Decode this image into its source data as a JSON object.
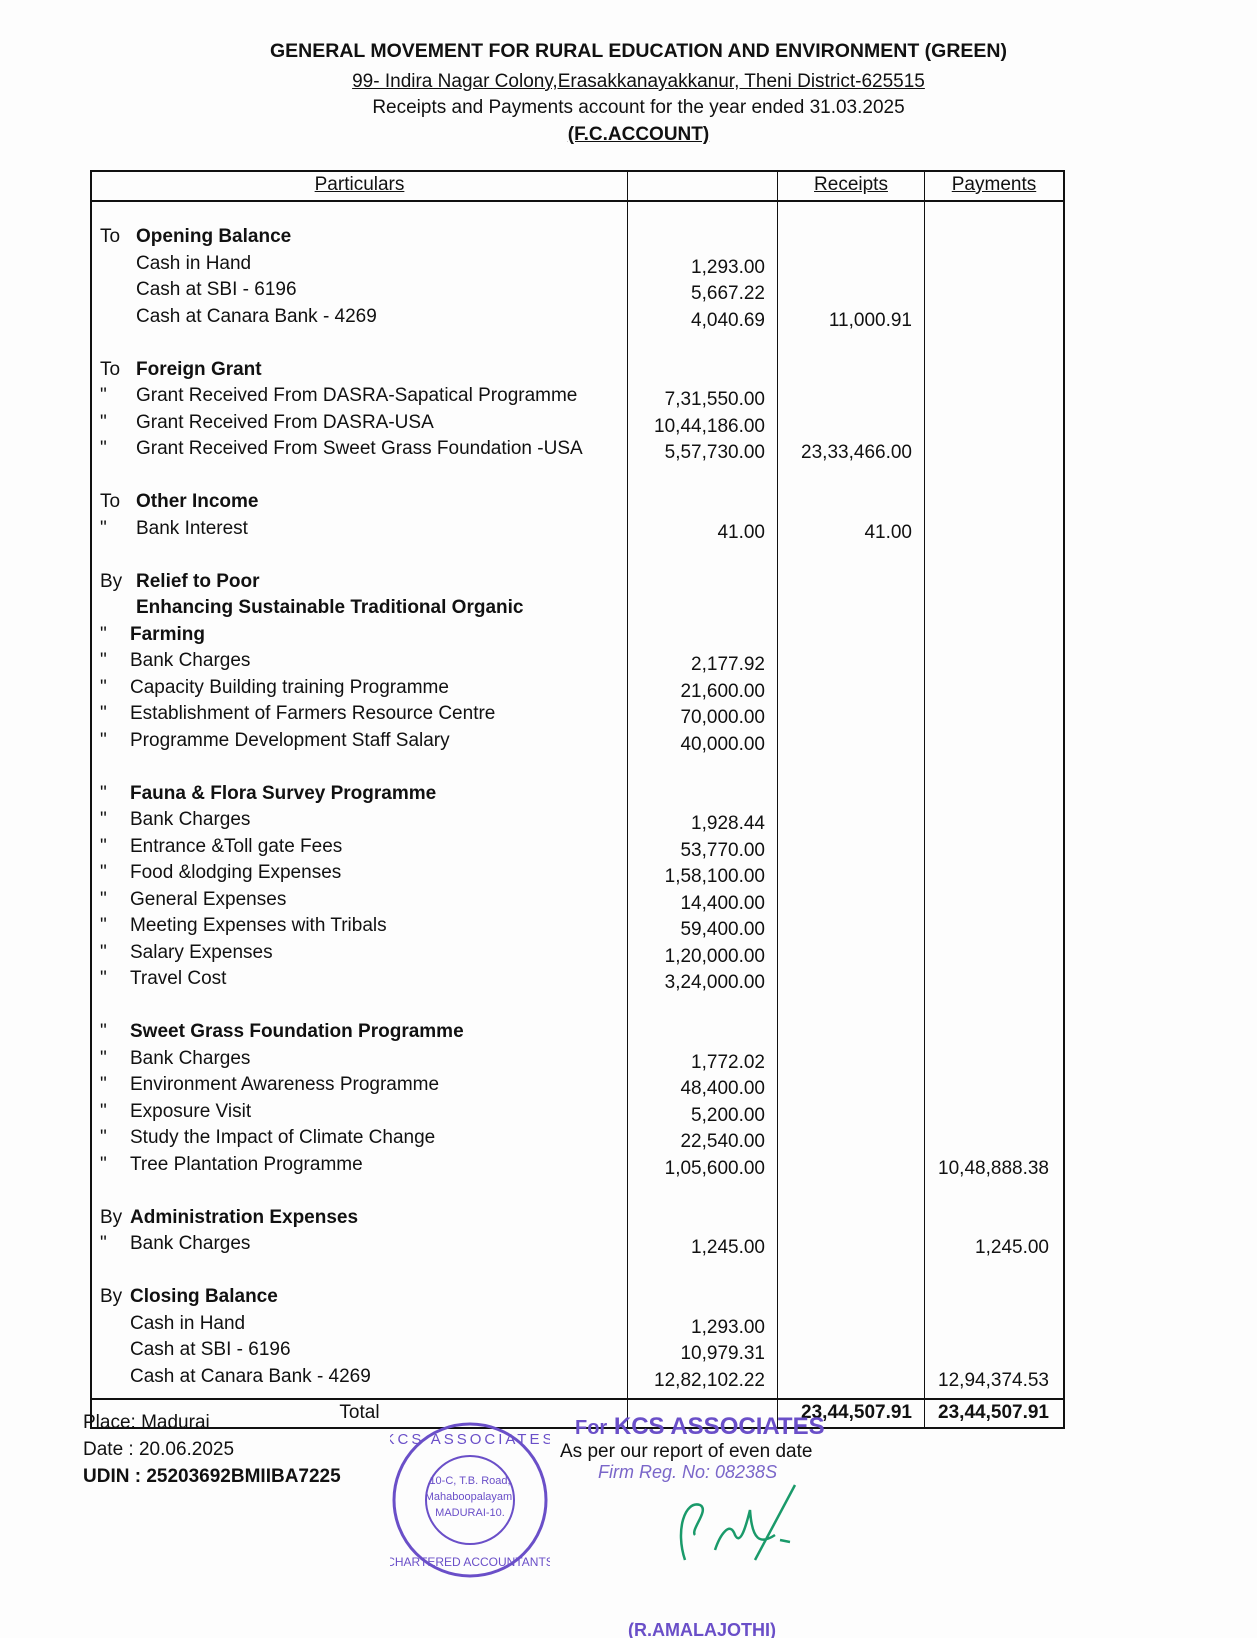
{
  "header": {
    "org": "GENERAL MOVEMENT FOR RURAL EDUCATION AND ENVIRONMENT (GREEN)",
    "address": "99- Indira Nagar Colony,Erasakkanayakkanur, Theni District-625515",
    "statement": "Receipts and Payments account for the year ended 31.03.2025",
    "account": "(F.C.ACCOUNT)"
  },
  "columns": {
    "particulars": "Particulars",
    "amount": "",
    "receipts": "Receipts",
    "payments": "Payments"
  },
  "rows": [
    {
      "pre": "To",
      "label": "Opening Balance",
      "bold": true,
      "indent": 1
    },
    {
      "label": "Cash in Hand",
      "indent": 1,
      "amount": "1,293.00"
    },
    {
      "label": "Cash at SBI - 6196",
      "indent": 1,
      "amount": "5,667.22"
    },
    {
      "label": "Cash at Canara Bank - 4269",
      "indent": 1,
      "amount": "4,040.69",
      "receipts": "11,000.91"
    },
    {
      "blank": true
    },
    {
      "pre": "To",
      "label": "Foreign Grant",
      "bold": true,
      "indent": 1
    },
    {
      "pre": "\"",
      "label": "Grant Received From DASRA-Sapatical Programme",
      "indent": 1,
      "amount": "7,31,550.00"
    },
    {
      "pre": "\"",
      "label": "Grant Received From DASRA-USA",
      "indent": 1,
      "amount": "10,44,186.00"
    },
    {
      "pre": "\"",
      "label": "Grant Received From Sweet Grass Foundation -USA",
      "indent": 1,
      "amount": "5,57,730.00",
      "receipts": "23,33,466.00"
    },
    {
      "blank": true
    },
    {
      "pre": "To",
      "label": "Other Income",
      "bold": true,
      "indent": 1
    },
    {
      "pre": "\"",
      "label": "Bank Interest",
      "indent": 1,
      "amount": "41.00",
      "receipts": "41.00"
    },
    {
      "blank": true
    },
    {
      "pre": "By",
      "label": "Relief to Poor",
      "bold": true,
      "indent": 1
    },
    {
      "label": "Enhancing Sustainable Traditional Organic",
      "bold": true,
      "indent": 1
    },
    {
      "pre": "\"",
      "label": "Farming",
      "bold": true,
      "indent": 2
    },
    {
      "pre": "\"",
      "label": "Bank Charges",
      "indent": 2,
      "amount": "2,177.92"
    },
    {
      "pre": "\"",
      "label": "Capacity Building training Programme",
      "indent": 2,
      "amount": "21,600.00"
    },
    {
      "pre": "\"",
      "label": "Establishment of Farmers Resource Centre",
      "indent": 2,
      "amount": "70,000.00"
    },
    {
      "pre": "\"",
      "label": "Programme Development Staff Salary",
      "indent": 2,
      "amount": "40,000.00"
    },
    {
      "blank": true
    },
    {
      "pre": "\"",
      "label": "Fauna & Flora Survey Programme",
      "bold": true,
      "indent": 2
    },
    {
      "pre": "\"",
      "label": "Bank Charges",
      "indent": 2,
      "amount": "1,928.44"
    },
    {
      "pre": "\"",
      "label": "Entrance &Toll gate Fees",
      "indent": 2,
      "amount": "53,770.00"
    },
    {
      "pre": "\"",
      "label": "Food &lodging Expenses",
      "indent": 2,
      "amount": "1,58,100.00"
    },
    {
      "pre": "\"",
      "label": "General Expenses",
      "indent": 2,
      "amount": "14,400.00"
    },
    {
      "pre": "\"",
      "label": "Meeting Expenses with Tribals",
      "indent": 2,
      "amount": "59,400.00"
    },
    {
      "pre": "\"",
      "label": "Salary Expenses",
      "indent": 2,
      "amount": "1,20,000.00"
    },
    {
      "pre": "\"",
      "label": "Travel Cost",
      "indent": 2,
      "amount": "3,24,000.00"
    },
    {
      "blank": true
    },
    {
      "pre": "\"",
      "label": "Sweet Grass Foundation Programme",
      "bold": true,
      "indent": 2
    },
    {
      "pre": "\"",
      "label": "Bank Charges",
      "indent": 2,
      "amount": "1,772.02"
    },
    {
      "pre": "\"",
      "label": "Environment Awareness Programme",
      "indent": 2,
      "amount": "48,400.00"
    },
    {
      "pre": "\"",
      "label": "Exposure Visit",
      "indent": 2,
      "amount": "5,200.00"
    },
    {
      "pre": "\"",
      "label": "Study the Impact of Climate Change",
      "indent": 2,
      "amount": "22,540.00"
    },
    {
      "pre": "\"",
      "label": "Tree Plantation Programme",
      "indent": 2,
      "amount": "1,05,600.00",
      "payments": "10,48,888.38"
    },
    {
      "blank": true
    },
    {
      "pre": "By",
      "label": "Administration Expenses",
      "bold": true,
      "indent": 2
    },
    {
      "pre": "\"",
      "label": "Bank Charges",
      "indent": 2,
      "amount": "1,245.00",
      "payments": "1,245.00"
    },
    {
      "blank": true
    },
    {
      "pre": "By",
      "label": "Closing Balance",
      "bold": true,
      "indent": 2
    },
    {
      "label": "Cash in Hand",
      "indent": 2,
      "amount": "1,293.00"
    },
    {
      "label": "Cash at SBI - 6196",
      "indent": 2,
      "amount": "10,979.31"
    },
    {
      "label": "Cash at Canara Bank - 4269",
      "indent": 2,
      "amount": "12,82,102.22",
      "payments": "12,94,374.53"
    }
  ],
  "total": {
    "label": "Total",
    "receipts": "23,44,507.91",
    "payments": "23,44,507.91"
  },
  "footer": {
    "place": "Place: Madurai",
    "date": "Date : 20.06.2025",
    "udin": "UDIN : 25203692BMIIBA7225",
    "auditor_for": "For",
    "auditor": "KCS ASSOCIATES",
    "report_note": "As per our report of even date",
    "firm_reg": "Firm Reg. No: 08238S",
    "signatory": "(R.AMALAJOTHI)",
    "stamp_text": "KCS ASSOCIATES CHARTERED ACCOUNTANTS 10-C, T.B. Road, Mahaboopalayam, MADURAI-10."
  },
  "colors": {
    "ink": "#111111",
    "stamp": "#6a4fc8",
    "signature": "#1a9a6a"
  }
}
